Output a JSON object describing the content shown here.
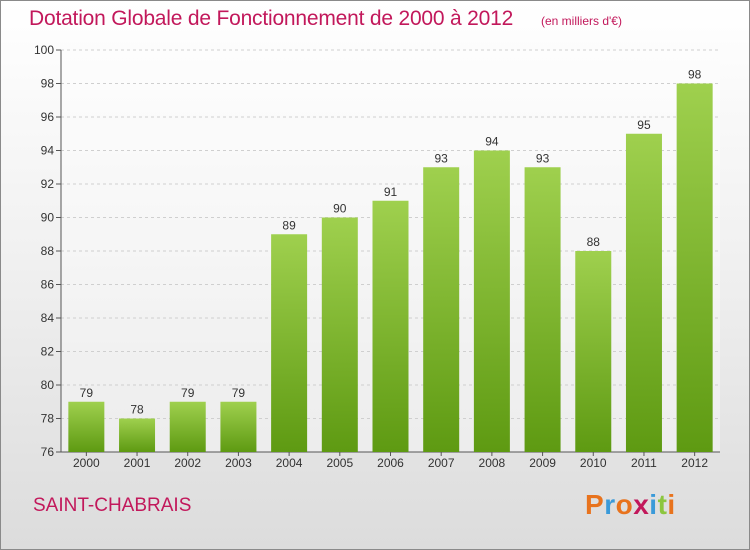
{
  "header": {
    "title": "Dotation Globale de Fonctionnement de 2000 à 2012",
    "unit_note": "(en milliers d'€)"
  },
  "footer": {
    "commune": "SAINT-CHABRAIS",
    "brand": "Proxiti",
    "brand_letter_colors": [
      "#e8731d",
      "#3a9ad9",
      "#e8731d",
      "#c2185b",
      "#3a9ad9",
      "#8cc63f",
      "#e8731d"
    ]
  },
  "colors": {
    "text_accent": "#c2185b",
    "bar_top": "#9fd04e",
    "bar_bottom": "#5e9a12",
    "grid": "#cfcfcf"
  },
  "chart_data": {
    "type": "bar",
    "title": "Dotation Globale de Fonctionnement de 2000 à 2012",
    "subtitle": "(en milliers d'€)",
    "xlabel": "",
    "ylabel": "",
    "categories": [
      "2000",
      "2001",
      "2002",
      "2003",
      "2004",
      "2005",
      "2006",
      "2007",
      "2008",
      "2009",
      "2010",
      "2011",
      "2012"
    ],
    "values": [
      79,
      78,
      79,
      79,
      89,
      90,
      91,
      93,
      94,
      93,
      88,
      95,
      98
    ],
    "ylim": [
      76,
      100
    ],
    "yticks": [
      76,
      78,
      80,
      82,
      84,
      86,
      88,
      90,
      92,
      94,
      96,
      98,
      100
    ],
    "grid": true,
    "data_labels": true
  }
}
